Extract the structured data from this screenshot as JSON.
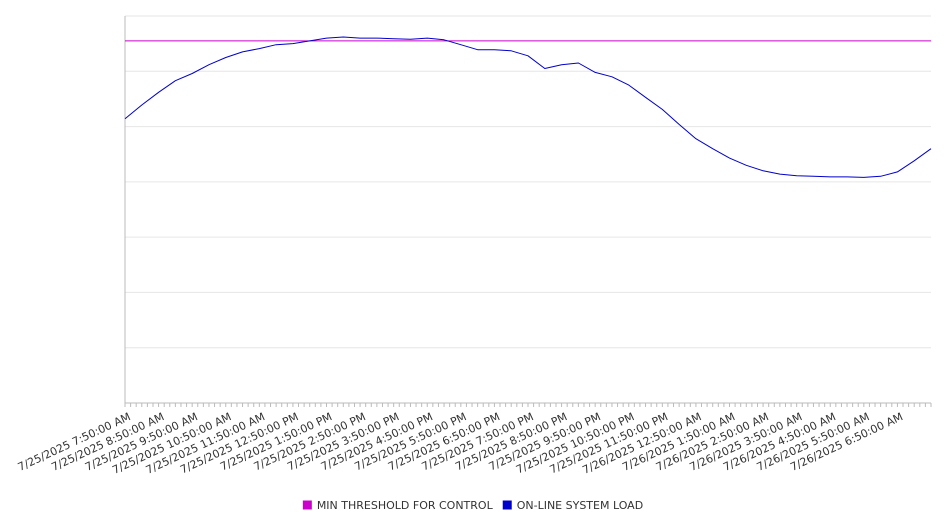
{
  "chart_data": {
    "type": "line",
    "title": "",
    "xlabel": "",
    "ylabel": "",
    "x_tick_labels": [
      "7/25/2025 7:50:00 AM",
      "7/25/2025 8:50:00 AM",
      "7/25/2025 9:50:00 AM",
      "7/25/2025 10:50:00 AM",
      "7/25/2025 11:50:00 AM",
      "7/25/2025 12:50:00 PM",
      "7/25/2025 1:50:00 PM",
      "7/25/2025 2:50:00 PM",
      "7/25/2025 3:50:00 PM",
      "7/25/2025 4:50:00 PM",
      "7/25/2025 5:50:00 PM",
      "7/25/2025 6:50:00 PM",
      "7/25/2025 7:50:00 PM",
      "7/25/2025 8:50:00 PM",
      "7/25/2025 9:50:00 PM",
      "7/25/2025 10:50:00 PM",
      "7/25/2025 11:50:00 PM",
      "7/26/2025 12:50:00 AM",
      "7/26/2025 1:50:00 AM",
      "7/26/2025 2:50:00 AM",
      "7/26/2025 3:50:00 AM",
      "7/26/2025 4:50:00 AM",
      "7/26/2025 5:50:00 AM",
      "7/26/2025 6:50:00 AM"
    ],
    "x_range": [
      "7/25/2025 7:50:00 AM",
      "7/26/2025 7:50:00 AM"
    ],
    "y_axis_labels_shown": false,
    "y_gridlines": 7,
    "grid": true,
    "legend_position": "bottom-center",
    "series": [
      {
        "name": "MIN THRESHOLD FOR CONTROL",
        "color": "#cc00cc",
        "x": [
          "7/25/2025 7:50:00 AM",
          "7/26/2025 7:50:00 AM"
        ],
        "values": [
          6.55,
          6.55
        ]
      },
      {
        "name": "ON-LINE SYSTEM LOAD",
        "color": "#0000cc",
        "x": [
          "7/25/2025 7:50:00 AM",
          "7/25/2025 8:20:00 AM",
          "7/25/2025 8:50:00 AM",
          "7/25/2025 9:20:00 AM",
          "7/25/2025 9:50:00 AM",
          "7/25/2025 10:20:00 AM",
          "7/25/2025 10:50:00 AM",
          "7/25/2025 11:20:00 AM",
          "7/25/2025 11:50:00 AM",
          "7/25/2025 12:20:00 PM",
          "7/25/2025 12:50:00 PM",
          "7/25/2025 1:20:00 PM",
          "7/25/2025 1:50:00 PM",
          "7/25/2025 2:20:00 PM",
          "7/25/2025 2:50:00 PM",
          "7/25/2025 3:20:00 PM",
          "7/25/2025 3:50:00 PM",
          "7/25/2025 4:20:00 PM",
          "7/25/2025 4:50:00 PM",
          "7/25/2025 5:20:00 PM",
          "7/25/2025 5:50:00 PM",
          "7/25/2025 6:20:00 PM",
          "7/25/2025 6:50:00 PM",
          "7/25/2025 7:20:00 PM",
          "7/25/2025 7:50:00 PM",
          "7/25/2025 8:20:00 PM",
          "7/25/2025 8:50:00 PM",
          "7/25/2025 9:20:00 PM",
          "7/25/2025 9:50:00 PM",
          "7/25/2025 10:20:00 PM",
          "7/25/2025 10:50:00 PM",
          "7/25/2025 11:20:00 PM",
          "7/25/2025 11:50:00 PM",
          "7/26/2025 12:20:00 AM",
          "7/26/2025 12:50:00 AM",
          "7/26/2025 1:20:00 AM",
          "7/26/2025 1:50:00 AM",
          "7/26/2025 2:20:00 AM",
          "7/26/2025 2:50:00 AM",
          "7/26/2025 3:20:00 AM",
          "7/26/2025 3:50:00 AM",
          "7/26/2025 4:20:00 AM",
          "7/26/2025 4:50:00 AM",
          "7/26/2025 5:20:00 AM",
          "7/26/2025 5:50:00 AM",
          "7/26/2025 6:20:00 AM",
          "7/26/2025 6:50:00 AM",
          "7/26/2025 7:20:00 AM",
          "7/26/2025 7:50:00 AM"
        ],
        "values": [
          5.14,
          5.39,
          5.62,
          5.83,
          5.96,
          6.12,
          6.25,
          6.35,
          6.41,
          6.48,
          6.5,
          6.55,
          6.6,
          6.62,
          6.6,
          6.6,
          6.59,
          6.58,
          6.6,
          6.57,
          6.48,
          6.39,
          6.39,
          6.37,
          6.28,
          6.05,
          6.12,
          6.15,
          5.98,
          5.9,
          5.75,
          5.53,
          5.31,
          5.04,
          4.78,
          4.6,
          4.43,
          4.3,
          4.2,
          4.14,
          4.11,
          4.1,
          4.09,
          4.09,
          4.08,
          4.1,
          4.18,
          4.38,
          4.6
        ]
      }
    ]
  }
}
